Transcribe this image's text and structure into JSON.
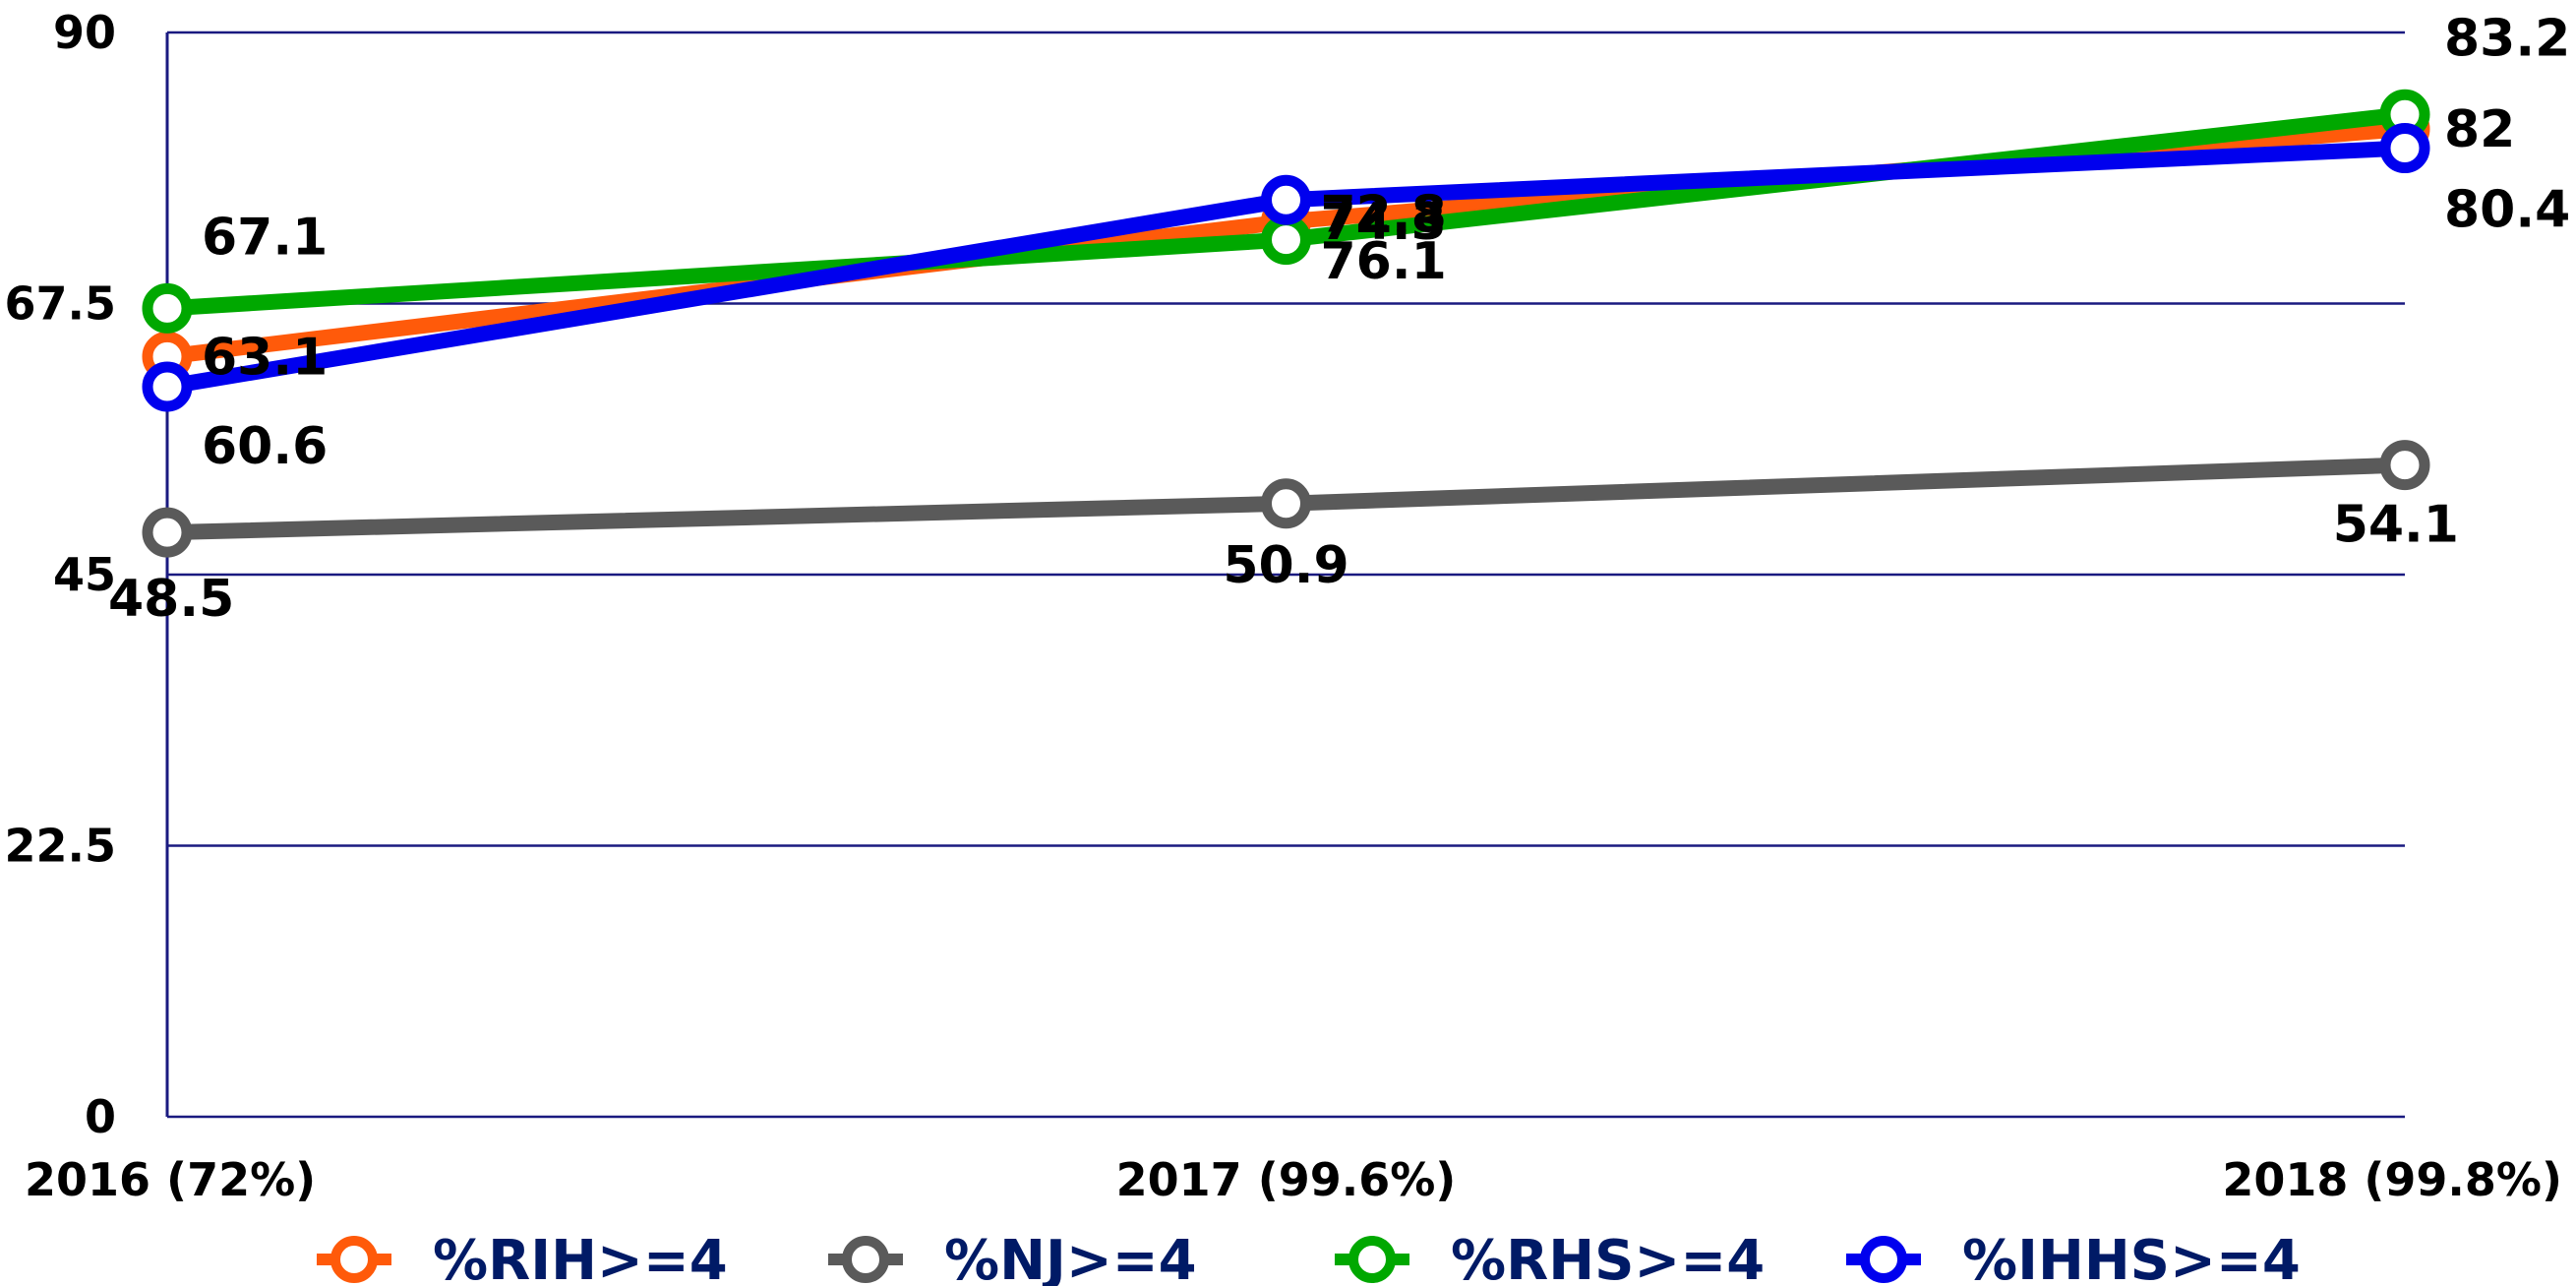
{
  "chart_data": {
    "type": "line",
    "categories": [
      "2016 (72%)",
      "2017 (99.6%)",
      "2018 (99.8%)"
    ],
    "yticks": [
      "0",
      "22.5",
      "45",
      "67.5",
      "90"
    ],
    "ylim": [
      0,
      90
    ],
    "grid": true,
    "legend_position": "bottom",
    "series": [
      {
        "name": "%RIH>=4",
        "color": "#ff5a0a",
        "values": [
          63.1,
          74.3,
          82
        ],
        "labels": [
          "63.1",
          "74.3",
          "82"
        ]
      },
      {
        "name": "%NJ>=4",
        "color": "#5a5a5a",
        "values": [
          48.5,
          50.9,
          54.1
        ],
        "labels": [
          "48.5",
          "50.9",
          "54.1"
        ]
      },
      {
        "name": "%RHS>=4",
        "color": "#00a800",
        "values": [
          67.1,
          72.8,
          83.2
        ],
        "labels": [
          "67.1",
          "72.8",
          "83.2"
        ]
      },
      {
        "name": "%IHHS>=4",
        "color": "#0000ee",
        "values": [
          60.6,
          76.1,
          80.4
        ],
        "labels": [
          "60.6",
          "76.1",
          "80.4"
        ]
      }
    ]
  }
}
